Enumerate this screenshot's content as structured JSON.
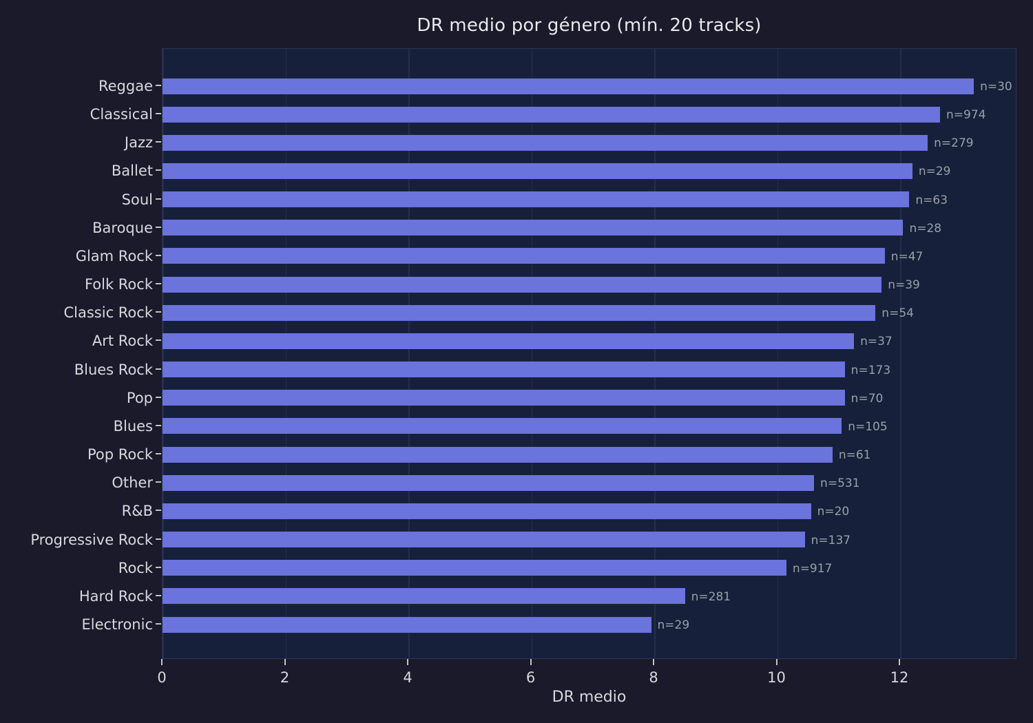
{
  "chart_data": {
    "type": "bar",
    "orientation": "horizontal",
    "title": "DR medio por género (mín. 20 tracks)",
    "xlabel": "DR medio",
    "ylabel": "",
    "xlim": [
      0,
      13.9
    ],
    "xticks": [
      0,
      2,
      4,
      6,
      8,
      10,
      12
    ],
    "grid": true,
    "legend": "none",
    "categories": [
      "Reggae",
      "Classical",
      "Jazz",
      "Ballet",
      "Soul",
      "Baroque",
      "Glam Rock",
      "Folk Rock",
      "Classic Rock",
      "Art Rock",
      "Blues Rock",
      "Pop",
      "Blues",
      "Pop Rock",
      "Other",
      "R&B",
      "Progressive Rock",
      "Rock",
      "Hard Rock",
      "Electronic"
    ],
    "values": [
      13.2,
      12.65,
      12.45,
      12.2,
      12.15,
      12.05,
      11.75,
      11.7,
      11.6,
      11.25,
      11.1,
      11.1,
      11.05,
      10.9,
      10.6,
      10.55,
      10.45,
      10.15,
      8.5,
      7.95
    ],
    "counts": [
      30,
      974,
      279,
      29,
      63,
      28,
      47,
      39,
      54,
      37,
      173,
      70,
      105,
      61,
      531,
      20,
      137,
      917,
      281,
      29
    ],
    "bar_labels": [
      "n=30",
      "n=974",
      "n=279",
      "n=29",
      "n=63",
      "n=28",
      "n=47",
      "n=39",
      "n=54",
      "n=37",
      "n=173",
      "n=70",
      "n=105",
      "n=61",
      "n=531",
      "n=20",
      "n=137",
      "n=917",
      "n=281",
      "n=29"
    ],
    "colors": {
      "background": "#1a1a2b",
      "plot_background": "#16203a",
      "bar": "#6b73dc",
      "grid": "#252d4b",
      "spine": "#2d3453",
      "title_text": "#e8e8ea",
      "axis_text": "#d8d8dc",
      "n_label_text": "#9aa0a6",
      "tick_mark": "#c2c2c8"
    }
  }
}
